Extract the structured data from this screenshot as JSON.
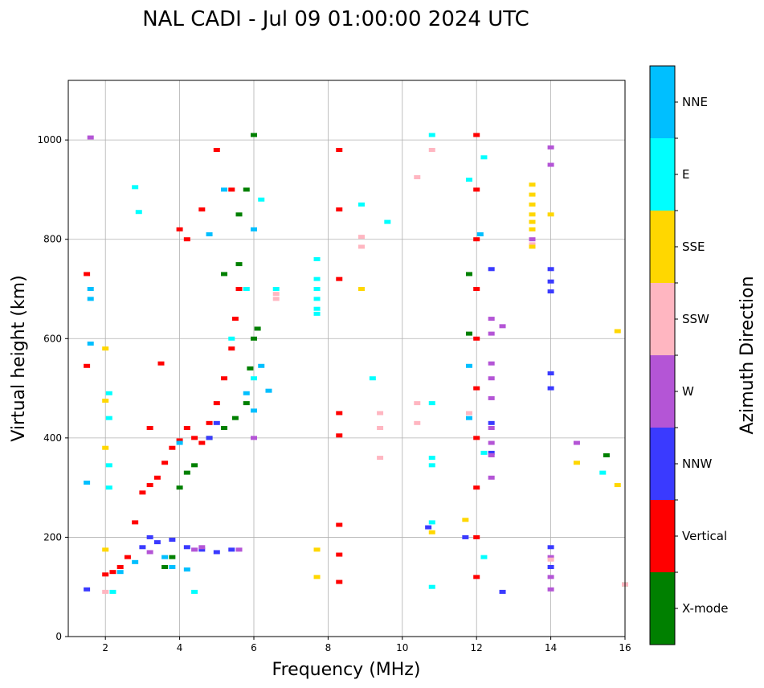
{
  "chart_data": {
    "type": "scatter",
    "title": "NAL CADI - Jul 09 01:00:00 2024 UTC",
    "xlabel": "Frequency (MHz)",
    "ylabel": "Virtual height (km)",
    "xlim": [
      1,
      16
    ],
    "ylim": [
      0,
      1120
    ],
    "xticks": [
      2,
      4,
      6,
      8,
      10,
      12,
      14,
      16
    ],
    "yticks": [
      0,
      200,
      400,
      600,
      800,
      1000
    ],
    "grid": true,
    "colorbar": {
      "label": "Azimuth Direction",
      "categories": [
        {
          "name": "X-mode",
          "color": "#008000"
        },
        {
          "name": "Vertical",
          "color": "#ff0000"
        },
        {
          "name": "NNW",
          "color": "#3a3aff"
        },
        {
          "name": "W",
          "color": "#b455d6"
        },
        {
          "name": "SSW",
          "color": "#ffb6c1"
        },
        {
          "name": "SSE",
          "color": "#ffd700"
        },
        {
          "name": "E",
          "color": "#00ffff"
        },
        {
          "name": "NNE",
          "color": "#00bfff"
        }
      ]
    },
    "series": [
      {
        "name": "Vertical",
        "points": [
          [
            2.0,
            125
          ],
          [
            2.2,
            130
          ],
          [
            2.4,
            140
          ],
          [
            2.6,
            160
          ],
          [
            2.8,
            230
          ],
          [
            3.0,
            290
          ],
          [
            3.2,
            305
          ],
          [
            3.4,
            320
          ],
          [
            3.6,
            350
          ],
          [
            3.8,
            380
          ],
          [
            4.0,
            395
          ],
          [
            4.2,
            420
          ],
          [
            4.4,
            400
          ],
          [
            4.6,
            390
          ],
          [
            4.8,
            430
          ],
          [
            5.0,
            470
          ],
          [
            5.2,
            520
          ],
          [
            5.4,
            580
          ],
          [
            5.5,
            640
          ],
          [
            5.6,
            700
          ],
          [
            5.4,
            900
          ],
          [
            5.0,
            980
          ],
          [
            4.6,
            860
          ],
          [
            4.2,
            800
          ],
          [
            4.0,
            820
          ],
          [
            8.3,
            980
          ],
          [
            8.3,
            860
          ],
          [
            8.3,
            720
          ],
          [
            8.3,
            450
          ],
          [
            8.3,
            405
          ],
          [
            8.3,
            225
          ],
          [
            8.3,
            165
          ],
          [
            8.3,
            110
          ],
          [
            12.0,
            1010
          ],
          [
            12.0,
            900
          ],
          [
            12.0,
            800
          ],
          [
            12.0,
            700
          ],
          [
            12.0,
            600
          ],
          [
            12.0,
            500
          ],
          [
            12.0,
            400
          ],
          [
            12.0,
            300
          ],
          [
            12.0,
            200
          ],
          [
            12.0,
            120
          ],
          [
            1.5,
            730
          ],
          [
            1.5,
            545
          ],
          [
            3.5,
            550
          ],
          [
            3.2,
            420
          ]
        ]
      },
      {
        "name": "X-mode",
        "points": [
          [
            3.6,
            140
          ],
          [
            3.8,
            160
          ],
          [
            4.0,
            300
          ],
          [
            4.2,
            330
          ],
          [
            4.4,
            345
          ],
          [
            4.8,
            400
          ],
          [
            5.2,
            420
          ],
          [
            5.5,
            440
          ],
          [
            5.8,
            470
          ],
          [
            5.9,
            540
          ],
          [
            6.0,
            600
          ],
          [
            6.1,
            620
          ],
          [
            5.6,
            750
          ],
          [
            5.6,
            850
          ],
          [
            5.8,
            900
          ],
          [
            6.0,
            1010
          ],
          [
            5.2,
            730
          ],
          [
            11.8,
            730
          ],
          [
            11.8,
            610
          ],
          [
            15.5,
            365
          ],
          [
            16.0,
            105
          ]
        ]
      },
      {
        "name": "NNW",
        "points": [
          [
            1.5,
            95
          ],
          [
            3.0,
            180
          ],
          [
            3.2,
            200
          ],
          [
            3.4,
            190
          ],
          [
            3.8,
            195
          ],
          [
            4.2,
            180
          ],
          [
            4.6,
            175
          ],
          [
            5.0,
            170
          ],
          [
            5.4,
            175
          ],
          [
            4.8,
            400
          ],
          [
            5.0,
            430
          ],
          [
            10.7,
            220
          ],
          [
            12.4,
            740
          ],
          [
            12.4,
            430
          ],
          [
            12.4,
            370
          ],
          [
            12.7,
            90
          ],
          [
            14.0,
            740
          ],
          [
            14.0,
            715
          ],
          [
            14.0,
            695
          ],
          [
            14.0,
            530
          ],
          [
            14.0,
            500
          ],
          [
            14.0,
            180
          ],
          [
            14.0,
            140
          ],
          [
            11.7,
            200
          ]
        ]
      },
      {
        "name": "W",
        "points": [
          [
            3.2,
            170
          ],
          [
            4.4,
            175
          ],
          [
            4.6,
            180
          ],
          [
            5.6,
            175
          ],
          [
            6.0,
            400
          ],
          [
            12.4,
            640
          ],
          [
            12.4,
            610
          ],
          [
            12.4,
            550
          ],
          [
            12.4,
            520
          ],
          [
            12.4,
            480
          ],
          [
            12.4,
            420
          ],
          [
            12.4,
            390
          ],
          [
            12.4,
            365
          ],
          [
            12.4,
            320
          ],
          [
            12.7,
            625
          ],
          [
            14.0,
            985
          ],
          [
            14.0,
            950
          ],
          [
            14.0,
            160
          ],
          [
            14.0,
            120
          ],
          [
            14.0,
            95
          ],
          [
            14.7,
            390
          ],
          [
            13.5,
            800
          ],
          [
            1.6,
            1005
          ]
        ]
      },
      {
        "name": "SSW",
        "points": [
          [
            2.0,
            90
          ],
          [
            6.6,
            690
          ],
          [
            6.6,
            680
          ],
          [
            8.9,
            805
          ],
          [
            8.9,
            785
          ],
          [
            9.4,
            450
          ],
          [
            9.4,
            420
          ],
          [
            9.4,
            360
          ],
          [
            10.4,
            925
          ],
          [
            10.4,
            470
          ],
          [
            10.4,
            430
          ],
          [
            10.8,
            980
          ],
          [
            11.8,
            450
          ],
          [
            13.5,
            790
          ],
          [
            14.0,
            155
          ],
          [
            16.0,
            105
          ]
        ]
      },
      {
        "name": "SSE",
        "points": [
          [
            2.0,
            580
          ],
          [
            2.0,
            475
          ],
          [
            2.0,
            380
          ],
          [
            2.0,
            175
          ],
          [
            7.7,
            175
          ],
          [
            7.7,
            120
          ],
          [
            8.9,
            700
          ],
          [
            10.8,
            210
          ],
          [
            11.7,
            235
          ],
          [
            13.5,
            910
          ],
          [
            13.5,
            890
          ],
          [
            13.5,
            870
          ],
          [
            13.5,
            850
          ],
          [
            13.5,
            835
          ],
          [
            13.5,
            820
          ],
          [
            13.5,
            785
          ],
          [
            14.0,
            850
          ],
          [
            14.7,
            350
          ],
          [
            15.8,
            305
          ],
          [
            15.8,
            615
          ]
        ]
      },
      {
        "name": "E",
        "points": [
          [
            2.1,
            490
          ],
          [
            2.1,
            440
          ],
          [
            2.1,
            345
          ],
          [
            2.1,
            300
          ],
          [
            2.2,
            90
          ],
          [
            2.8,
            905
          ],
          [
            2.9,
            855
          ],
          [
            4.4,
            90
          ],
          [
            5.4,
            600
          ],
          [
            5.8,
            700
          ],
          [
            6.0,
            520
          ],
          [
            6.2,
            880
          ],
          [
            6.6,
            700
          ],
          [
            7.7,
            760
          ],
          [
            7.7,
            720
          ],
          [
            7.7,
            700
          ],
          [
            7.7,
            680
          ],
          [
            7.7,
            660
          ],
          [
            7.7,
            650
          ],
          [
            8.9,
            870
          ],
          [
            9.6,
            835
          ],
          [
            9.2,
            520
          ],
          [
            10.8,
            1010
          ],
          [
            10.8,
            470
          ],
          [
            10.8,
            360
          ],
          [
            10.8,
            345
          ],
          [
            10.8,
            230
          ],
          [
            10.8,
            100
          ],
          [
            11.8,
            920
          ],
          [
            12.2,
            965
          ],
          [
            12.2,
            370
          ],
          [
            12.2,
            160
          ],
          [
            15.4,
            330
          ]
        ]
      },
      {
        "name": "NNE",
        "points": [
          [
            1.6,
            700
          ],
          [
            1.6,
            680
          ],
          [
            1.6,
            590
          ],
          [
            1.5,
            310
          ],
          [
            2.4,
            130
          ],
          [
            2.8,
            150
          ],
          [
            3.6,
            160
          ],
          [
            3.8,
            140
          ],
          [
            4.2,
            135
          ],
          [
            4.0,
            390
          ],
          [
            4.8,
            810
          ],
          [
            5.2,
            900
          ],
          [
            5.8,
            490
          ],
          [
            6.0,
            455
          ],
          [
            6.2,
            545
          ],
          [
            6.4,
            495
          ],
          [
            6.0,
            820
          ],
          [
            11.8,
            545
          ],
          [
            11.8,
            440
          ],
          [
            12.1,
            810
          ]
        ]
      }
    ]
  }
}
